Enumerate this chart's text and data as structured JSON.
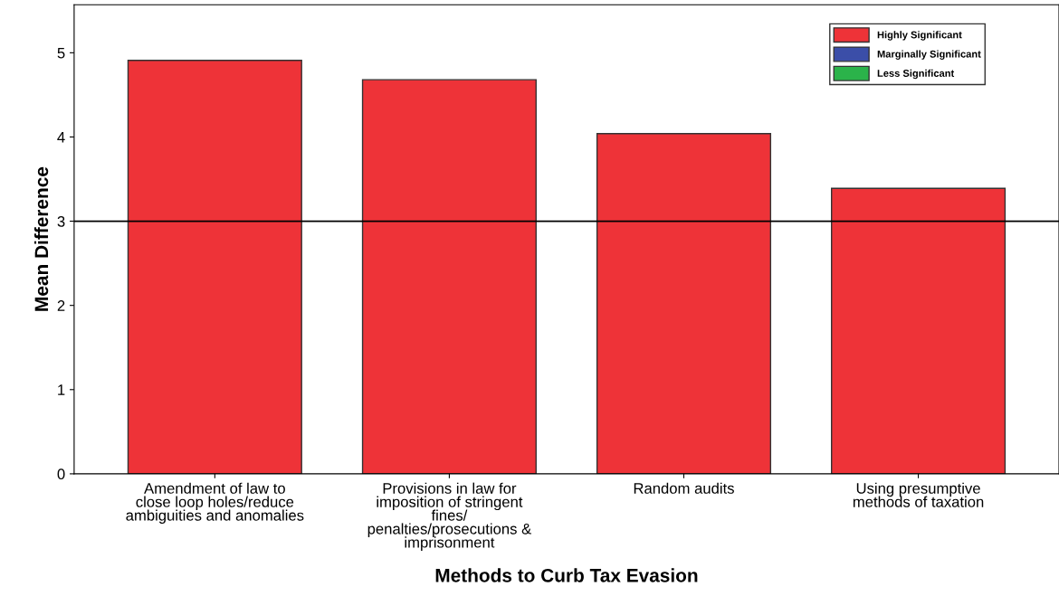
{
  "chart_data": {
    "type": "bar",
    "xlabel": "Methods to Curb Tax Evasion",
    "ylabel": "Mean Difference",
    "categories": [
      "Amendment of law to\nclose loop holes/reduce\nambiguities and anomalies",
      "Provisions in law for\nimposition of stringent\nfines/\npenalties/prosecutions &\nimprisonment",
      "Random audits",
      "Using presumptive\nmethods of taxation"
    ],
    "series": [
      {
        "name": "Highly Significant",
        "color": "#ee3338",
        "values": [
          4.91,
          4.68,
          4.04,
          3.39
        ]
      },
      {
        "name": "Marginally Significant",
        "color": "#3b4ea8",
        "values": [
          null,
          null,
          null,
          null
        ]
      },
      {
        "name": "Less Significant",
        "color": "#2bb34a",
        "values": [
          null,
          null,
          null,
          null
        ]
      }
    ],
    "ylim": [
      0,
      5.57
    ],
    "yticks": [
      0,
      1,
      2,
      3,
      4,
      5
    ],
    "ref_lines": [
      {
        "axis": "y",
        "value": 3,
        "color": "#000000"
      }
    ],
    "grid": false,
    "legend": "top right"
  }
}
